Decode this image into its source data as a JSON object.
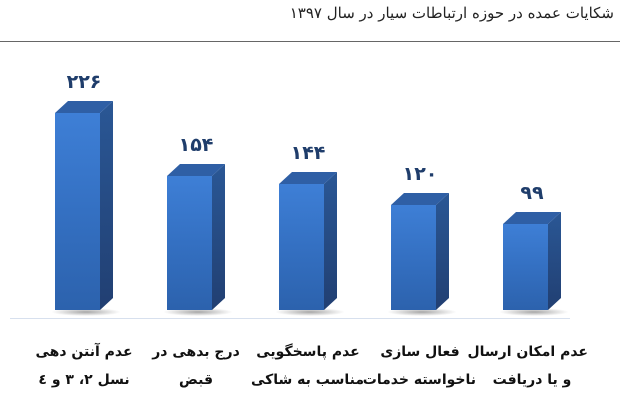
{
  "chart_data": {
    "type": "bar",
    "title": "شکایات عمده در حوزه ارتباطات سیار در سال ۱۳۹۷",
    "xlabel": "",
    "ylabel": "",
    "ylim": [
      0,
      240
    ],
    "grid": false,
    "legend": null,
    "style": "3d-column",
    "categories": [
      "عدم آنتن دهی نسل ۲، ۳ و ۴",
      "درج بدهی در قبض",
      "عدم پاسخگویی مناسب به شاکی",
      "فعال سازی ناخواسته خدمات",
      "عدم امکان ارسال و یا دریافت"
    ],
    "values": [
      226,
      154,
      144,
      120,
      99
    ],
    "value_labels": [
      "۲۲۶",
      "۱۵۴",
      "۱۴۴",
      "۱۲۰",
      "۹۹"
    ],
    "category_lines": [
      [
        "عدم آنتن دهی",
        "نسل ۲، ۳ و ٤"
      ],
      [
        "درج بدهی در",
        "قبض"
      ],
      [
        "عدم پاسخگویی",
        "مناسب به شاکی"
      ],
      [
        "فعال سازی",
        "ناخواسته خدمات"
      ],
      [
        "عدم امکان ارسال",
        "و یا دریافت"
      ]
    ],
    "colors": {
      "bar_front": "#3470c2",
      "bar_side": "#213f72",
      "bar_top": "#2f5fa5",
      "value_text": "#1f3d6b"
    }
  }
}
